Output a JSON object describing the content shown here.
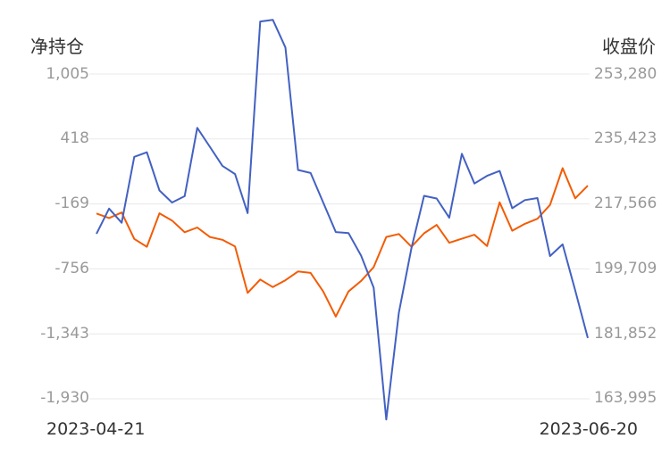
{
  "chart_data": {
    "type": "line",
    "y_left_title": "净持仓",
    "y_right_title": "收盘价",
    "left_ticks": [
      "1,005",
      "418",
      "-169",
      "-756",
      "-1,343",
      "-1,930"
    ],
    "right_ticks": [
      "253,280",
      "235,423",
      "217,566",
      "199,709",
      "181,852",
      "163,995"
    ],
    "left_range": [
      -1930,
      1005
    ],
    "right_range": [
      163995,
      253280
    ],
    "x_start_label": "2023-04-21",
    "x_end_label": "2023-06-20",
    "colors": {
      "net_position": "#4361c2",
      "close_price": "#f25c05",
      "grid": "#e8e8e8"
    },
    "series": [
      {
        "key": "net_position",
        "axis": "left",
        "values": [
          -439,
          -211,
          -339,
          257,
          298,
          -47,
          -156,
          -99,
          519,
          348,
          175,
          101,
          -252,
          1480,
          1495,
          1245,
          138,
          111,
          -156,
          -423,
          -432,
          -636,
          -926,
          -2118,
          -1151,
          -567,
          -96,
          -120,
          -294,
          284,
          16,
          85,
          129,
          -208,
          -134,
          -116,
          -640,
          -534,
          -950,
          -1381
        ]
      },
      {
        "key": "close_price",
        "axis": "right",
        "values": [
          214950,
          213700,
          215200,
          207950,
          205800,
          215000,
          213000,
          209800,
          211100,
          208500,
          207700,
          205900,
          193100,
          196800,
          194700,
          196600,
          199000,
          198600,
          193500,
          186600,
          193500,
          196400,
          200200,
          208500,
          209300,
          205800,
          209500,
          211800,
          206900,
          208000,
          209100,
          206000,
          218000,
          210200,
          212100,
          213500,
          217300,
          227400,
          219100,
          222600
        ]
      }
    ]
  }
}
